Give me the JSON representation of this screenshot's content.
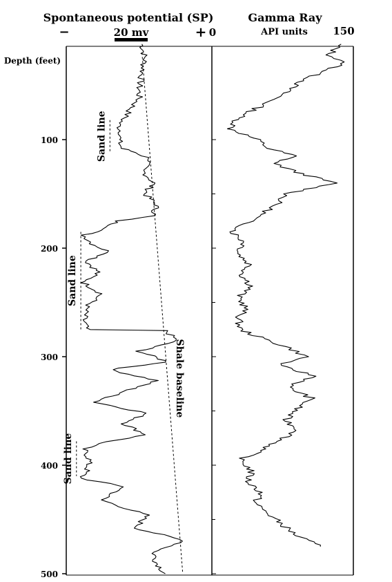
{
  "chart_data": [
    {
      "type": "line",
      "title": "Spontaneous potential (SP)",
      "ylabel": "Depth (feet)",
      "x_unit_label": "20 mv",
      "x_minus_label": "−",
      "x_plus_label": "+",
      "y_ticks": [
        "100",
        "200",
        "300",
        "400",
        "500"
      ],
      "ylim": [
        12,
        500
      ],
      "xlim": [
        0,
        100
      ],
      "grid": false,
      "annotations": [
        {
          "text": "Sand line",
          "depth_top": 82,
          "depth_bottom": 112,
          "x": 30
        },
        {
          "text": "Sand line",
          "depth_top": 185,
          "depth_bottom": 275,
          "x": 10
        },
        {
          "text": "Sand line",
          "depth_top": 378,
          "depth_bottom": 410,
          "x": 7
        },
        {
          "text": "Shale baseline",
          "depth_at": 320,
          "x": 72
        }
      ],
      "shale_baseline": [
        {
          "depth": 20,
          "x": 52
        },
        {
          "depth": 500,
          "x": 80
        }
      ],
      "series": [
        {
          "values": [
            {
              "depth": 12,
              "x": 52
            },
            {
              "depth": 25,
              "x": 54
            },
            {
              "depth": 40,
              "x": 52
            },
            {
              "depth": 52,
              "x": 50
            },
            {
              "depth": 62,
              "x": 50
            },
            {
              "depth": 72,
              "x": 44
            },
            {
              "depth": 80,
              "x": 40
            },
            {
              "depth": 86,
              "x": 36
            },
            {
              "depth": 95,
              "x": 38
            },
            {
              "depth": 100,
              "x": 36
            },
            {
              "depth": 108,
              "x": 38
            },
            {
              "depth": 112,
              "x": 48
            },
            {
              "depth": 118,
              "x": 58
            },
            {
              "depth": 128,
              "x": 52
            },
            {
              "depth": 140,
              "x": 60
            },
            {
              "depth": 150,
              "x": 54
            },
            {
              "depth": 160,
              "x": 62
            },
            {
              "depth": 170,
              "x": 60
            },
            {
              "depth": 175,
              "x": 35
            },
            {
              "depth": 182,
              "x": 28
            },
            {
              "depth": 188,
              "x": 12
            },
            {
              "depth": 196,
              "x": 18
            },
            {
              "depth": 204,
              "x": 30
            },
            {
              "depth": 212,
              "x": 14
            },
            {
              "depth": 222,
              "x": 22
            },
            {
              "depth": 232,
              "x": 12
            },
            {
              "depth": 242,
              "x": 24
            },
            {
              "depth": 254,
              "x": 14
            },
            {
              "depth": 266,
              "x": 12
            },
            {
              "depth": 275,
              "x": 14
            },
            {
              "depth": 276,
              "x": 68
            },
            {
              "depth": 285,
              "x": 76
            },
            {
              "depth": 295,
              "x": 50
            },
            {
              "depth": 305,
              "x": 70
            },
            {
              "depth": 312,
              "x": 30
            },
            {
              "depth": 322,
              "x": 62
            },
            {
              "depth": 332,
              "x": 40
            },
            {
              "depth": 342,
              "x": 20
            },
            {
              "depth": 352,
              "x": 55
            },
            {
              "depth": 362,
              "x": 40
            },
            {
              "depth": 372,
              "x": 55
            },
            {
              "depth": 380,
              "x": 22
            },
            {
              "depth": 385,
              "x": 12
            },
            {
              "depth": 395,
              "x": 16
            },
            {
              "depth": 405,
              "x": 14
            },
            {
              "depth": 412,
              "x": 10
            },
            {
              "depth": 420,
              "x": 40
            },
            {
              "depth": 432,
              "x": 24
            },
            {
              "depth": 446,
              "x": 55
            },
            {
              "depth": 458,
              "x": 48
            },
            {
              "depth": 470,
              "x": 82
            },
            {
              "depth": 480,
              "x": 60
            },
            {
              "depth": 490,
              "x": 62
            },
            {
              "depth": 500,
              "x": 68
            }
          ]
        }
      ]
    },
    {
      "type": "line",
      "title": "Gamma Ray",
      "x_unit_label": "API units",
      "x_left_label": "0",
      "x_right_label": "150",
      "xlim": [
        0,
        150
      ],
      "ylim": [
        12,
        500
      ],
      "grid": false,
      "series": [
        {
          "values": [
            {
              "depth": 12,
              "x": 135
            },
            {
              "depth": 22,
              "x": 125
            },
            {
              "depth": 30,
              "x": 140
            },
            {
              "depth": 40,
              "x": 110
            },
            {
              "depth": 50,
              "x": 88
            },
            {
              "depth": 60,
              "x": 72
            },
            {
              "depth": 70,
              "x": 50
            },
            {
              "depth": 80,
              "x": 28
            },
            {
              "depth": 90,
              "x": 20
            },
            {
              "depth": 100,
              "x": 48
            },
            {
              "depth": 108,
              "x": 60
            },
            {
              "depth": 115,
              "x": 88
            },
            {
              "depth": 122,
              "x": 66
            },
            {
              "depth": 130,
              "x": 90
            },
            {
              "depth": 140,
              "x": 130
            },
            {
              "depth": 150,
              "x": 80
            },
            {
              "depth": 158,
              "x": 70
            },
            {
              "depth": 166,
              "x": 58
            },
            {
              "depth": 175,
              "x": 40
            },
            {
              "depth": 185,
              "x": 22
            },
            {
              "depth": 195,
              "x": 35
            },
            {
              "depth": 205,
              "x": 28
            },
            {
              "depth": 215,
              "x": 40
            },
            {
              "depth": 225,
              "x": 32
            },
            {
              "depth": 235,
              "x": 42
            },
            {
              "depth": 245,
              "x": 28
            },
            {
              "depth": 255,
              "x": 36
            },
            {
              "depth": 265,
              "x": 28
            },
            {
              "depth": 275,
              "x": 30
            },
            {
              "depth": 282,
              "x": 50
            },
            {
              "depth": 292,
              "x": 82
            },
            {
              "depth": 300,
              "x": 100
            },
            {
              "depth": 308,
              "x": 70
            },
            {
              "depth": 318,
              "x": 110
            },
            {
              "depth": 328,
              "x": 80
            },
            {
              "depth": 338,
              "x": 105
            },
            {
              "depth": 348,
              "x": 90
            },
            {
              "depth": 358,
              "x": 78
            },
            {
              "depth": 368,
              "x": 92
            },
            {
              "depth": 378,
              "x": 70
            },
            {
              "depth": 385,
              "x": 55
            },
            {
              "depth": 395,
              "x": 30
            },
            {
              "depth": 405,
              "x": 42
            },
            {
              "depth": 415,
              "x": 38
            },
            {
              "depth": 425,
              "x": 52
            },
            {
              "depth": 435,
              "x": 46
            },
            {
              "depth": 445,
              "x": 60
            },
            {
              "depth": 455,
              "x": 75
            },
            {
              "depth": 465,
              "x": 90
            },
            {
              "depth": 475,
              "x": 115
            }
          ]
        }
      ]
    }
  ]
}
